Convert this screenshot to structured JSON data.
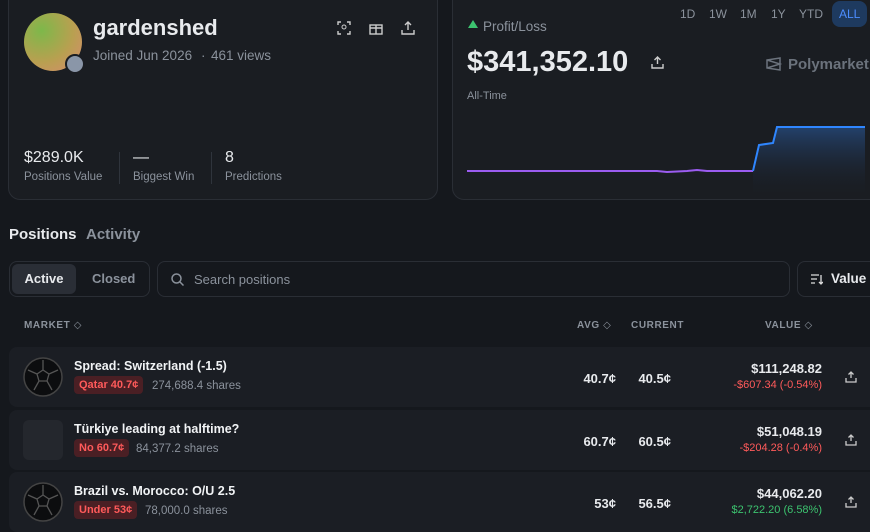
{
  "profile": {
    "username": "gardenshed",
    "joined": "Joined Jun 2026",
    "views": "461 views",
    "stats": [
      {
        "value": "$289.0K",
        "label": "Positions Value"
      },
      {
        "value": "—",
        "label": "Biggest Win"
      },
      {
        "value": "8",
        "label": "Predictions"
      }
    ]
  },
  "pnl": {
    "label": "Profit/Loss",
    "value": "$341,352.10",
    "period": "All-Time",
    "ranges": [
      "1D",
      "1W",
      "1M",
      "1Y",
      "YTD",
      "ALL"
    ],
    "active_range": "ALL",
    "brand": "Polymarket"
  },
  "tabs": [
    "Positions",
    "Activity"
  ],
  "filters": [
    "Active",
    "Closed"
  ],
  "search_placeholder": "Search positions",
  "sort": "Value",
  "table": {
    "columns": [
      "MARKET",
      "AVG",
      "CURRENT",
      "VALUE"
    ],
    "rows": [
      {
        "title": "Spread: Switzerland (-1.5)",
        "outcome": "Qatar 40.7¢",
        "shares": "274,688.4 shares",
        "avg": "40.7¢",
        "current": "40.5¢",
        "value": "$111,248.82",
        "change": "-$607.34 (-0.54%)"
      },
      {
        "title": "Türkiye leading at halftime?",
        "outcome": "No 60.7¢",
        "shares": "84,377.2 shares",
        "avg": "60.7¢",
        "current": "60.5¢",
        "value": "$51,048.19",
        "change": "-$204.28 (-0.4%)"
      },
      {
        "title": "Brazil vs. Morocco: O/U 2.5",
        "outcome": "Under 53¢",
        "shares": "78,000.0 shares",
        "avg": "53¢",
        "current": "56.5¢",
        "value": "$44,062.20",
        "change": "$2,722.20 (6.58%)"
      }
    ]
  }
}
